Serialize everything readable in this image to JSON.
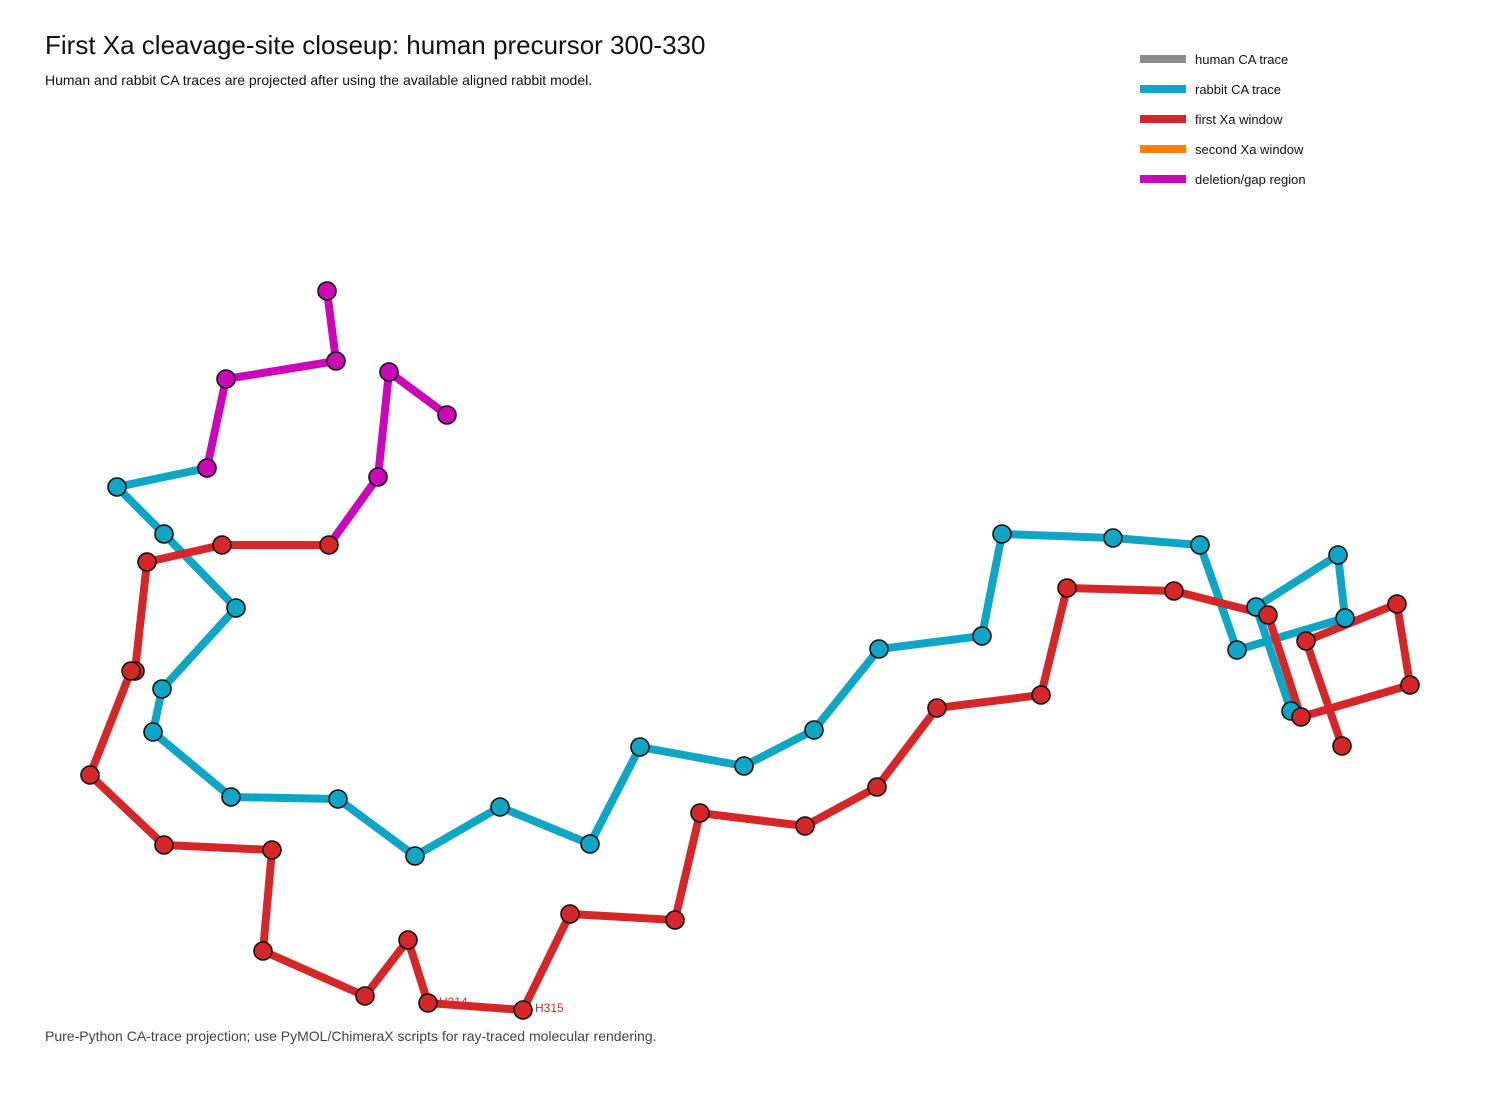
{
  "title": "First Xa cleavage-site closeup: human precursor 300-330",
  "subtitle": "Human and rabbit CA traces are projected after using the available aligned rabbit model.",
  "footer": "Pure-Python CA-trace projection; use PyMOL/ChimeraX scripts for ray-traced molecular rendering.",
  "legend": [
    {
      "label": "human CA trace",
      "color": "#8c8c8c"
    },
    {
      "label": "rabbit CA trace",
      "color": "#0fa5c5"
    },
    {
      "label": "first Xa window",
      "color": "#d62728"
    },
    {
      "label": "second Xa window",
      "color": "#ff7f0e"
    },
    {
      "label": "deletion/gap region",
      "color": "#cc06b9"
    }
  ],
  "residue_labels": [
    {
      "text": "H314",
      "color": "#d62728"
    },
    {
      "text": "H315",
      "color": "#d62728"
    }
  ]
}
